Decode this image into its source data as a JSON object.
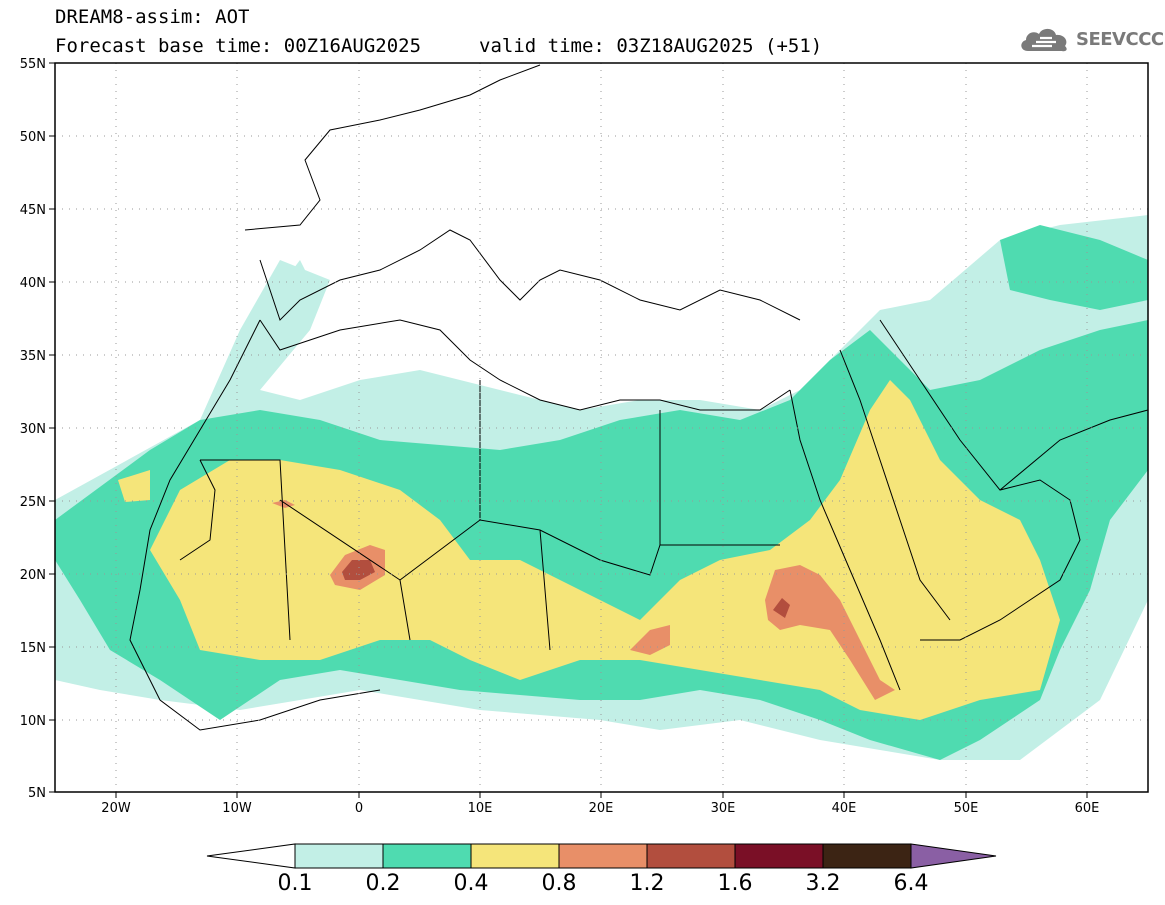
{
  "header": {
    "model_title": "DREAM8-assim: AOT",
    "base_time": "Forecast base time: 00Z16AUG2025",
    "valid_time": "valid time: 03Z18AUG2025 (+51)"
  },
  "logo": {
    "text": "SEEVCCC",
    "icon": "cloud-icon"
  },
  "map": {
    "lon_range": [
      -25,
      65
    ],
    "lat_range": [
      5,
      55
    ],
    "lat_ticks": [
      "55N",
      "50N",
      "45N",
      "40N",
      "35N",
      "30N",
      "25N",
      "20N",
      "15N",
      "10N",
      "5N"
    ],
    "lon_ticks": [
      "20W",
      "10W",
      "0",
      "10E",
      "20E",
      "30E",
      "40E",
      "50E",
      "60E"
    ]
  },
  "colorbar": {
    "labels": [
      "0.1",
      "0.2",
      "0.4",
      "0.8",
      "1.2",
      "1.6",
      "3.2",
      "6.4"
    ],
    "colors": [
      "#c2efe6",
      "#4fdbb0",
      "#f5e57a",
      "#e88f68",
      "#b24e3e",
      "#7a0f26",
      "#3c2414",
      "#8a5fa4"
    ]
  }
}
